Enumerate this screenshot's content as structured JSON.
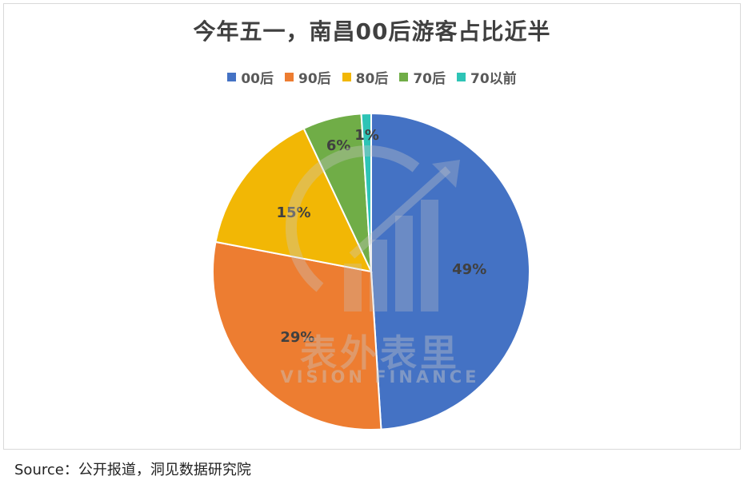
{
  "chart_data": {
    "type": "pie",
    "title": "今年五一，南昌00后游客占比近半",
    "categories": [
      "00后",
      "90后",
      "80后",
      "70后",
      "70以前"
    ],
    "values": [
      49,
      29,
      15,
      6,
      1
    ],
    "data_labels": [
      "49%",
      "29%",
      "15%",
      "6%",
      "1%"
    ],
    "colors": [
      "#4472C4",
      "#ED7D31",
      "#F2B705",
      "#70AD47",
      "#2EC4B6"
    ],
    "legend_position": "top",
    "start_angle_deg": 0,
    "direction": "clockwise"
  },
  "watermark": {
    "cn": "表外表里",
    "en": "VISION FINANCE"
  },
  "footer": {
    "source": "Source：公开报道，洞见数据研究院"
  }
}
